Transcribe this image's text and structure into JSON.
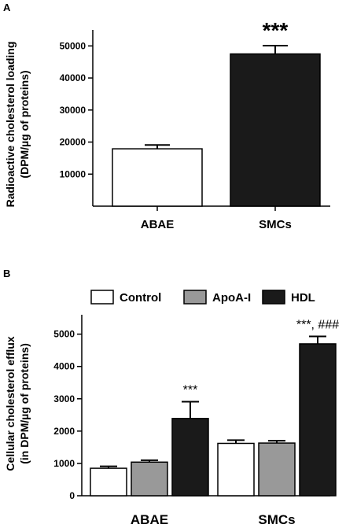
{
  "chart_data": [
    {
      "panel_label": "A",
      "type": "bar",
      "ylabel_line1": "Radioactive cholesterol loading",
      "ylabel_line2": "(DPM/µg of proteins)",
      "categories": [
        "ABAE",
        "SMCs"
      ],
      "values": [
        17900,
        47500
      ],
      "errors": [
        1200,
        2600
      ],
      "bar_colors": [
        "#ffffff",
        "#1a1a1a"
      ],
      "annotations": [
        "",
        "***"
      ],
      "ylim": [
        0,
        55000
      ],
      "yticks": [
        10000,
        20000,
        30000,
        40000,
        50000
      ],
      "ytick_labels": [
        "10000",
        "20000",
        "30000",
        "40000",
        "50000"
      ],
      "grid": false
    },
    {
      "panel_label": "B",
      "type": "bar",
      "ylabel_line1": "Cellular cholesterol efflux",
      "ylabel_line2": "(in DPM/µg of proteins)",
      "categories": [
        "ABAE",
        "SMCs"
      ],
      "series": [
        {
          "name": "Control",
          "color": "#ffffff",
          "values": [
            850,
            1620
          ],
          "errors": [
            60,
            100
          ]
        },
        {
          "name": "ApoA-I",
          "color": "#999999",
          "values": [
            1040,
            1630
          ],
          "errors": [
            60,
            70
          ]
        },
        {
          "name": "HDL",
          "color": "#1a1a1a",
          "values": [
            2390,
            4700
          ],
          "errors": [
            520,
            230
          ]
        }
      ],
      "annotations": [
        {
          "category": 0,
          "series": 2,
          "text": "***"
        },
        {
          "category": 1,
          "series": 2,
          "text": "***, ###"
        }
      ],
      "ylim": [
        0,
        5600
      ],
      "yticks": [
        0,
        1000,
        2000,
        3000,
        4000,
        5000
      ],
      "ytick_labels": [
        "0",
        "1000",
        "2000",
        "3000",
        "4000",
        "5000"
      ],
      "legend_position": "top",
      "grid": false
    }
  ]
}
